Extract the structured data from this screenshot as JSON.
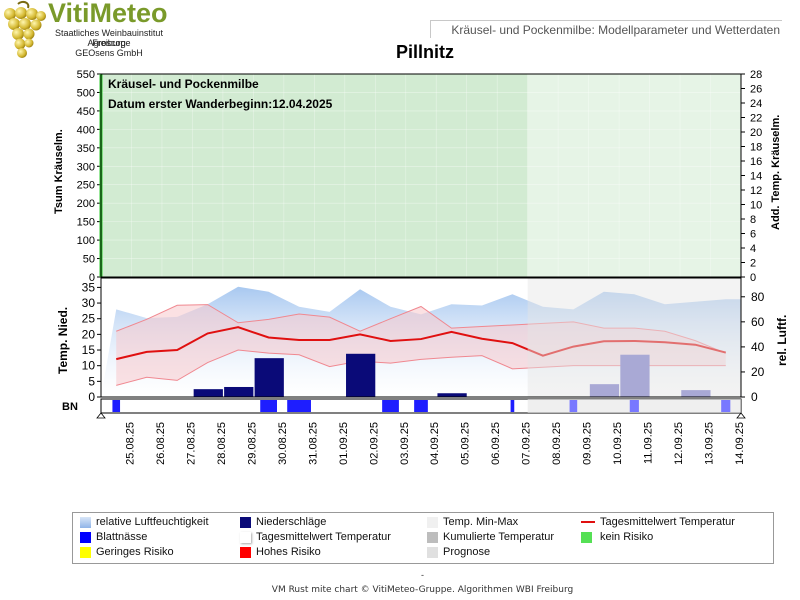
{
  "header": {
    "brand": "VitiMeteo",
    "brand_lines": [
      "Staatliches Weinbauinstitut Freiburg",
      "Agroscope",
      "GEOsens GmbH"
    ],
    "page_subtitle": "Kräusel- und Pockenmilbe: Modellparameter und Wetterdaten",
    "station": "Pillnitz"
  },
  "colors": {
    "upper_background": "#d2ebd2",
    "forecast_shade": "#e6e6e6",
    "humidity_area": "#a8c8f0",
    "minmax_band": "#f8c8cc",
    "mean_temp_line": "#e01010",
    "precipitation_bars": "#0a0a78",
    "forecast_precipitation_bars": "#7878c8",
    "leaf_wetness": "#1e1eff",
    "forecast_leaf_wetness": "#7878ff"
  },
  "chart_data": [
    {
      "type": "line",
      "panel": "upper",
      "annotations": [
        "Kräusel- und Pockenmilbe",
        "Datum  erster Wanderbeginn:12.04.2025"
      ],
      "ylabel": "Tsum Kräuselm.",
      "ylim": [
        0,
        550
      ],
      "yticks": [
        0,
        50,
        100,
        150,
        200,
        250,
        300,
        350,
        400,
        450,
        500,
        550
      ],
      "y2label": "Add. Temp. Kräuselm.",
      "y2lim": [
        0,
        28
      ],
      "y2ticks": [
        0,
        2,
        4,
        6,
        8,
        10,
        12,
        14,
        16,
        18,
        20,
        22,
        24,
        26,
        28
      ],
      "risk_band": "kein Risiko",
      "forecast_from": "08.09.25",
      "grid": true
    },
    {
      "type": "bar",
      "panel": "lower",
      "categories": [
        "25.08.25",
        "26.08.25",
        "27.08.25",
        "28.08.25",
        "29.08.25",
        "30.08.25",
        "31.08.25",
        "01.09.25",
        "02.09.25",
        "03.09.25",
        "04.09.25",
        "05.09.25",
        "06.09.25",
        "07.09.25",
        "08.09.25",
        "09.09.25",
        "10.09.25",
        "11.09.25",
        "12.09.25",
        "13.09.25",
        "14.09.25"
      ],
      "ylabel": "Temp. Nied.",
      "ylim": [
        0,
        38
      ],
      "yticks": [
        0,
        5,
        10,
        15,
        20,
        25,
        30,
        35
      ],
      "y2label": "rel. Luftf.",
      "y2lim": [
        0,
        95
      ],
      "y2ticks": [
        0,
        20,
        40,
        60,
        80
      ],
      "forecast_from_index": 14,
      "series": [
        {
          "name": "relative Luftfeuchtigkeit",
          "axis": "right",
          "values": [
            70,
            63,
            64,
            74,
            88,
            84,
            72,
            68,
            86,
            72,
            66,
            74,
            73,
            82,
            72,
            70,
            84,
            82,
            74,
            76,
            78
          ]
        },
        {
          "name": "Niederschläge",
          "axis": "left",
          "values": [
            0,
            0,
            0,
            2.5,
            3.2,
            12.4,
            0,
            0,
            13.8,
            0,
            0,
            1.2,
            0,
            0,
            0,
            0,
            4.1,
            13.5,
            0,
            2.2,
            0
          ]
        },
        {
          "name": "Temp. Min-Max",
          "axis": "left",
          "min": [
            3.7,
            6.3,
            5.3,
            11,
            15,
            14,
            13.5,
            9.7,
            11.5,
            10.8,
            12,
            12.7,
            13.2,
            9,
            9.5,
            10,
            10,
            10,
            10,
            10,
            10
          ],
          "max": [
            21,
            24.8,
            29.3,
            29.5,
            23.7,
            24.8,
            26.5,
            25.5,
            21,
            25,
            28.9,
            22,
            22.5,
            23,
            23.5,
            24,
            22,
            22,
            21,
            18,
            14
          ]
        },
        {
          "name": "Tagesmittelwert Temperatur",
          "axis": "left",
          "values": [
            12.1,
            14.4,
            15,
            20.3,
            22.3,
            19,
            18.2,
            18.2,
            20,
            17.9,
            18.5,
            20.8,
            18.6,
            17.2,
            13.2,
            16.1,
            17.8,
            17.9,
            17.5,
            16.7,
            14.2
          ]
        }
      ],
      "leaf_wetness_label": "BN",
      "leaf_wetness_fraction": [
        0.25,
        0,
        0,
        0,
        0,
        0.55,
        0.78,
        0,
        0,
        0.55,
        0.45,
        0,
        0,
        0.12,
        0,
        0.25,
        0,
        0.3,
        0,
        0,
        0.3
      ]
    }
  ],
  "legend": {
    "items": [
      {
        "label": "relative Luftfeuchtigkeit",
        "swatch": "gradient-blue"
      },
      {
        "label": "Niederschläge",
        "swatch": "#0a0a78"
      },
      {
        "label": "Temp. Min-Max",
        "swatch": "#f0f0f0"
      },
      {
        "label": "Tagesmittelwert Temperatur",
        "swatch": "line-red"
      },
      {
        "label": "Blattnässe",
        "swatch": "#0000ff"
      },
      {
        "label": "Tagesmittelwert Temperatur",
        "swatch": "#ffffff"
      },
      {
        "label": "Kumulierte Temperatur",
        "swatch": "#bdbdbd"
      },
      {
        "label": "kein Risiko",
        "swatch": "#55e055"
      },
      {
        "label": "Geringes Risiko",
        "swatch": "#ffff00"
      },
      {
        "label": "Hohes Risiko",
        "swatch": "#ff0000"
      },
      {
        "label": "Prognose",
        "swatch": "#e0e0e0"
      }
    ]
  },
  "footer": {
    "dash": "-",
    "credit": "VM Rust mite chart © VitiMeteo-Gruppe. Algorithmen WBI Freiburg"
  }
}
